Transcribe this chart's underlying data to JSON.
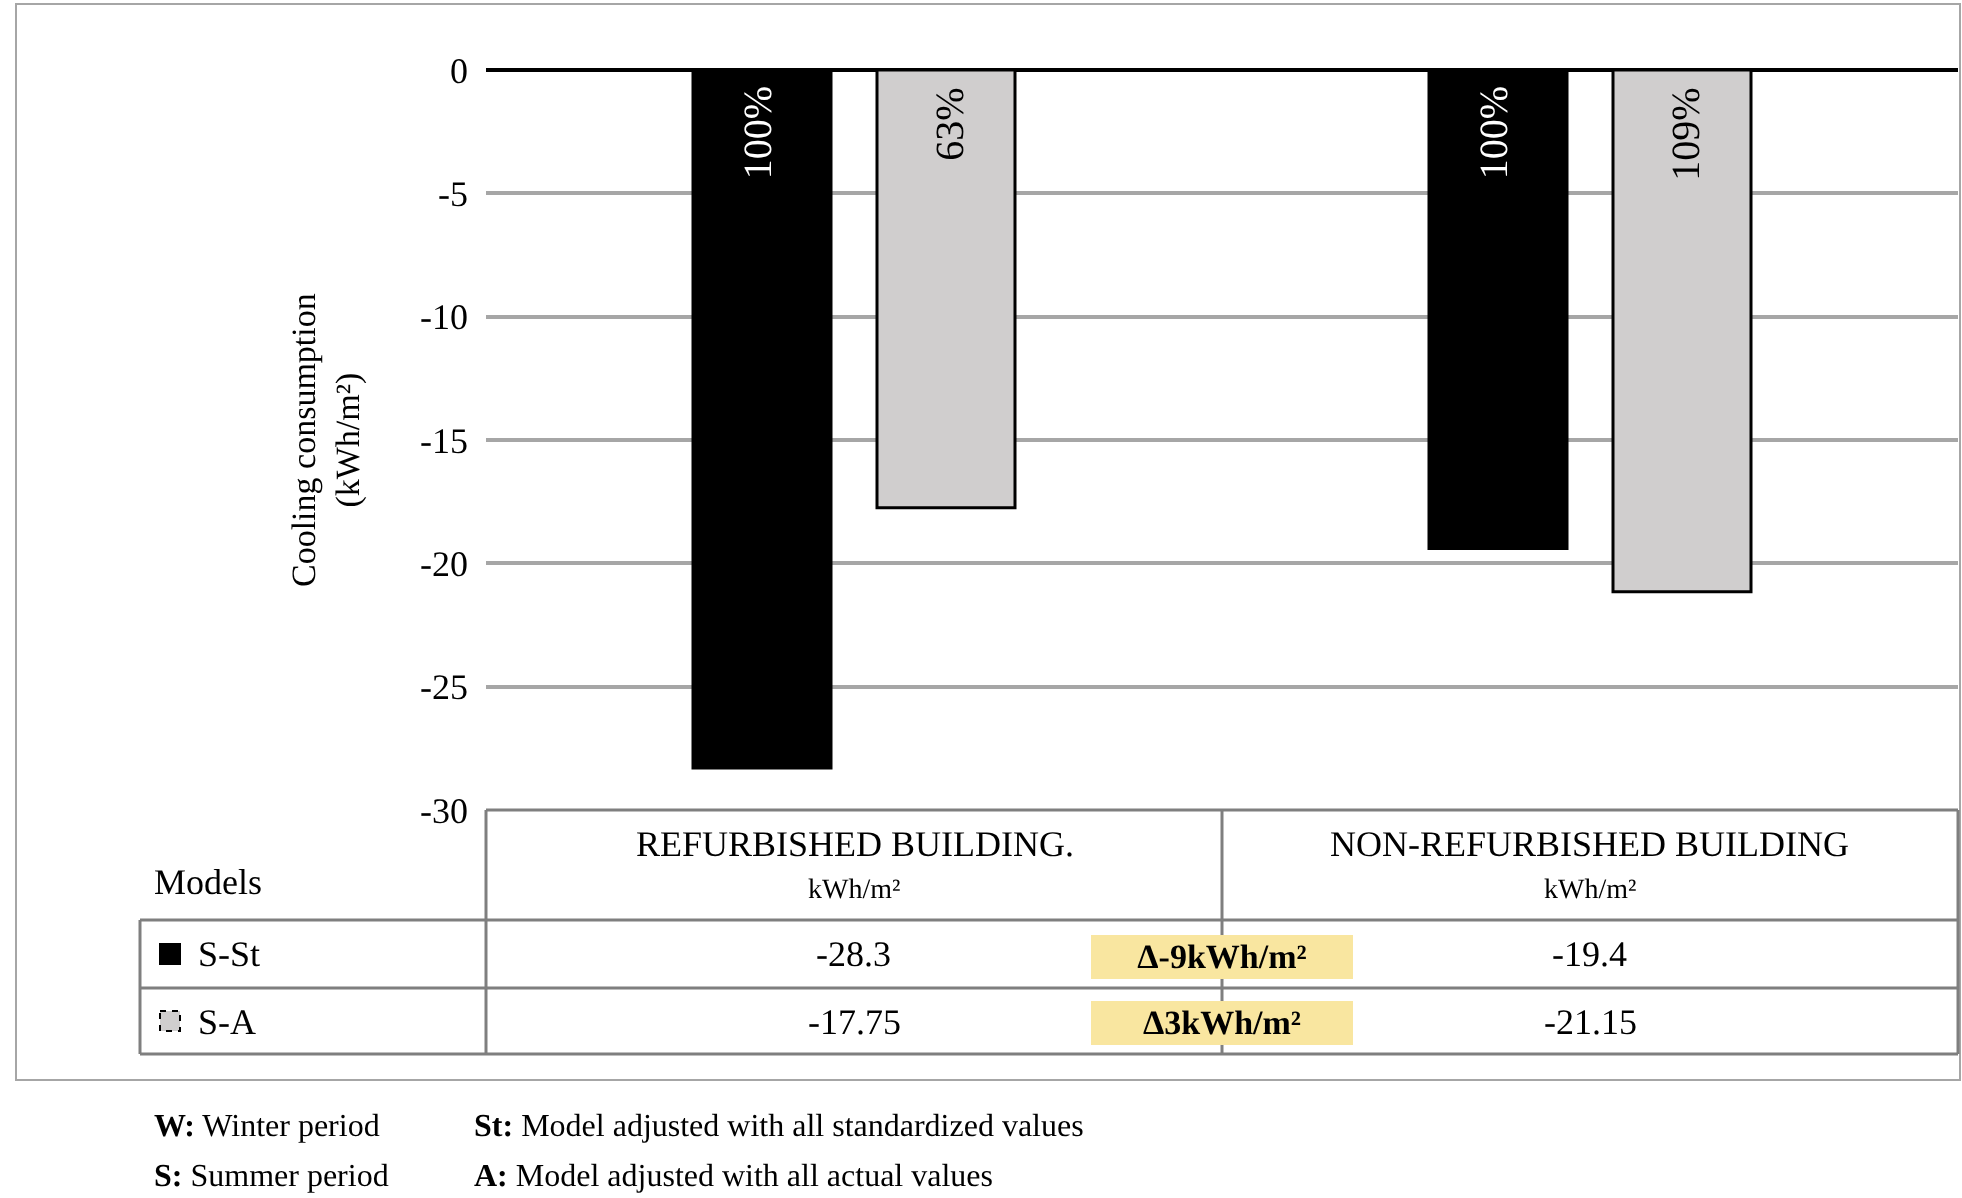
{
  "chart_data": {
    "type": "bar",
    "ylabel": "Cooling consumption\n(kWh/m²)",
    "legend_title": "Models",
    "categories": [
      "REFURBISHED BUILDING.\nkWh/m²",
      "NON-REFURBISHED BUILDING\nkWh/m²"
    ],
    "series": [
      {
        "name": "S-St",
        "color": "#000000",
        "values": [
          -28.3,
          -19.4
        ]
      },
      {
        "name": "S-A",
        "color": "#d0cece",
        "values": [
          -17.75,
          -21.15
        ]
      }
    ],
    "ylim": [
      -30,
      0
    ],
    "yticks": [
      -30,
      -25,
      -20,
      -15,
      -10,
      -5,
      0
    ],
    "grid": "y",
    "legend": "bottom left",
    "tick_labels": "y",
    "data_labels": true,
    "annotations": [
      "100%",
      "63%",
      "100%",
      "109%",
      "Δ-9kWh/m²",
      "Δ3kWh/m²",
      "W: Winter period",
      "St: Model adjusted with all standardized values",
      "S: Summer period",
      "A: Model adjusted with all actual values"
    ]
  }
}
